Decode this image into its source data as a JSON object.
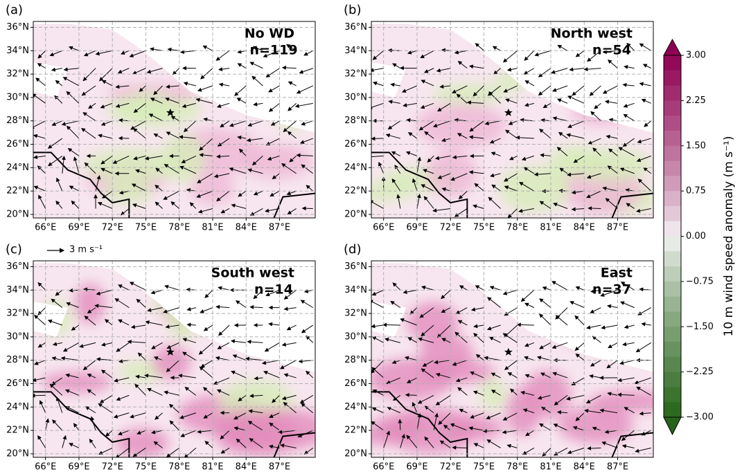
{
  "panels": [
    {
      "label": "(a)",
      "title": "No WD",
      "count": "n=119"
    },
    {
      "label": "(b)",
      "title": "North west",
      "count": "n=54"
    },
    {
      "label": "(c)",
      "title": "South west",
      "count": "n=14"
    },
    {
      "label": "(d)",
      "title": "East",
      "count": "n=37"
    }
  ],
  "lat_ticks": [
    "20°N",
    "22°N",
    "24°N",
    "26°N",
    "28°N",
    "30°N",
    "32°N",
    "34°N",
    "36°N"
  ],
  "lon_ticks": [
    "66°E",
    "69°E",
    "72°E",
    "75°E",
    "78°E",
    "81°E",
    "84°E",
    "87°E"
  ],
  "reference_vector": "3 m s⁻¹",
  "colorbar": {
    "label": "10 m wind speed anomaly (m s⁻¹)",
    "lim": [
      -3,
      3
    ],
    "ticks": [
      {
        "value": 3,
        "label": "3.00"
      },
      {
        "value": 2.25,
        "label": "2.25"
      },
      {
        "value": 1.5,
        "label": "1.50"
      },
      {
        "value": 0.75,
        "label": "0.75"
      },
      {
        "value": 0,
        "label": "0.00"
      },
      {
        "value": -0.75,
        "label": "−0.75"
      },
      {
        "value": -1.5,
        "label": "−1.50"
      },
      {
        "value": -2.25,
        "label": "−2.25"
      },
      {
        "value": -3,
        "label": "−3.00"
      }
    ]
  }
}
